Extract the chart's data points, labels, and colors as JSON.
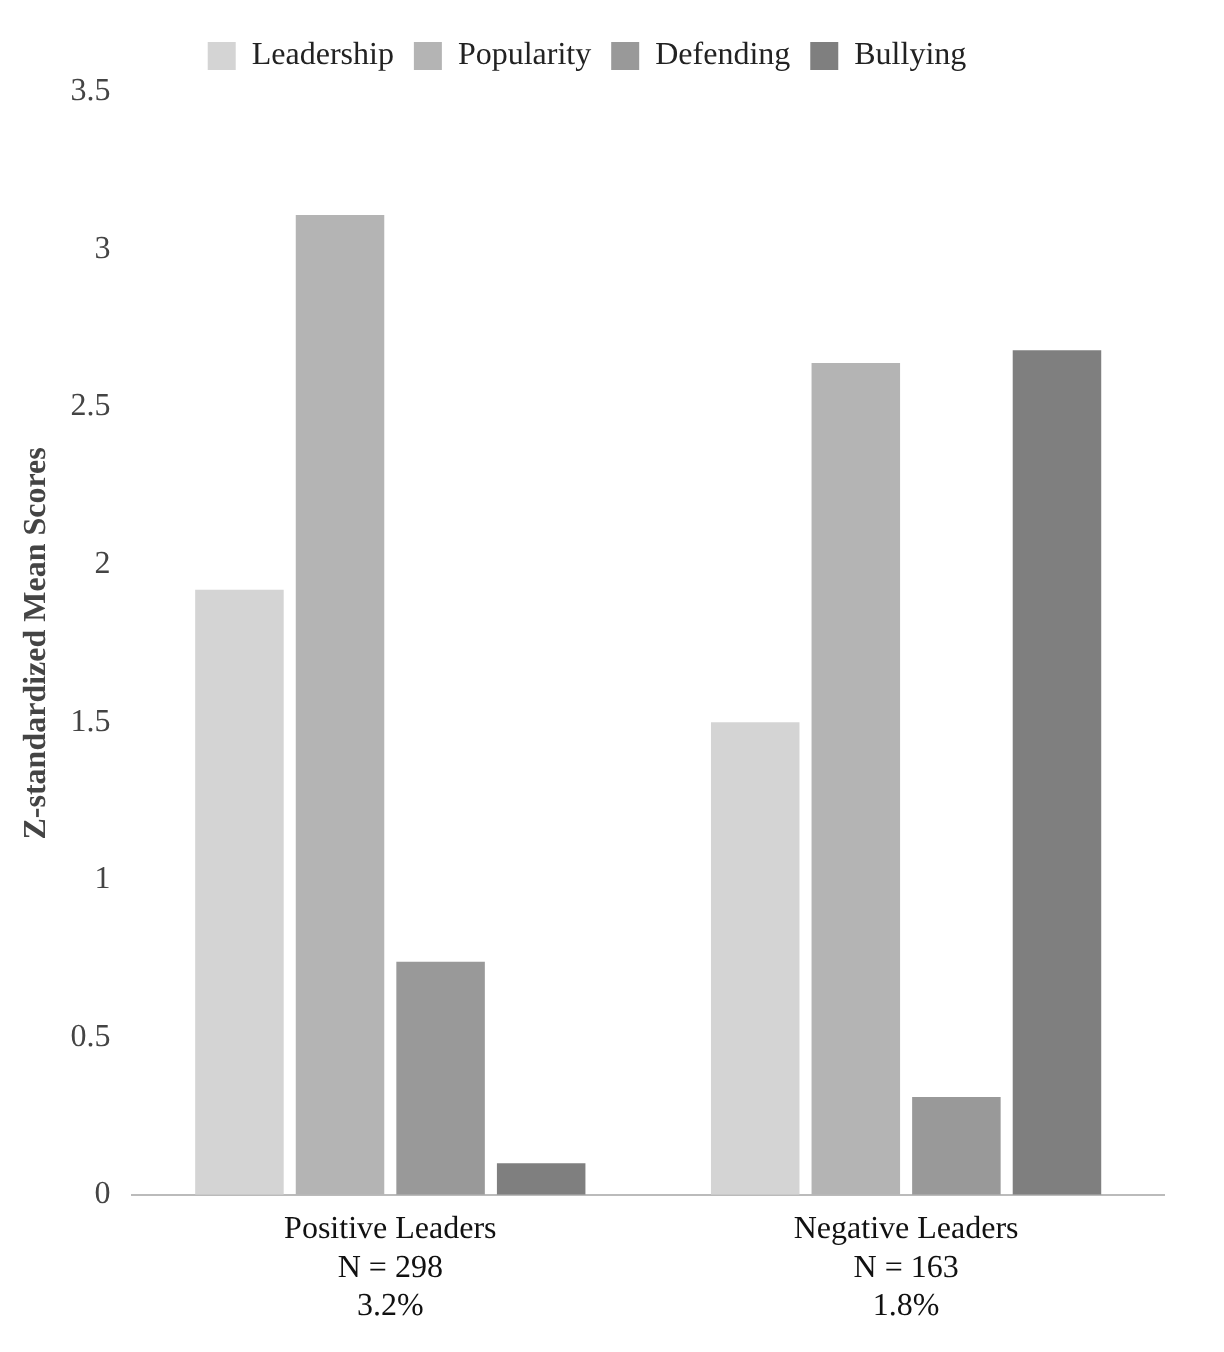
{
  "chart_data": {
    "type": "bar",
    "ylabel": "Z-standardized Mean Scores",
    "categories": [
      "Positive Leaders\nN = 298\n3.2%",
      "Negative Leaders\nN = 163\n1.8%"
    ],
    "series": [
      {
        "name": "Leadership",
        "color": "#d4d4d4",
        "values": [
          1.92,
          1.5
        ]
      },
      {
        "name": "Popularity",
        "color": "#b4b4b4",
        "values": [
          3.11,
          2.64
        ]
      },
      {
        "name": "Defending",
        "color": "#999999",
        "values": [
          0.74,
          0.31
        ]
      },
      {
        "name": "Bullying",
        "color": "#7f7f7f",
        "values": [
          0.1,
          2.68
        ]
      }
    ],
    "ylim": [
      0,
      3.5
    ],
    "yticks": [
      0,
      0.5,
      1,
      1.5,
      2,
      2.5,
      3,
      3.5
    ],
    "grid": false,
    "legend": "top"
  }
}
